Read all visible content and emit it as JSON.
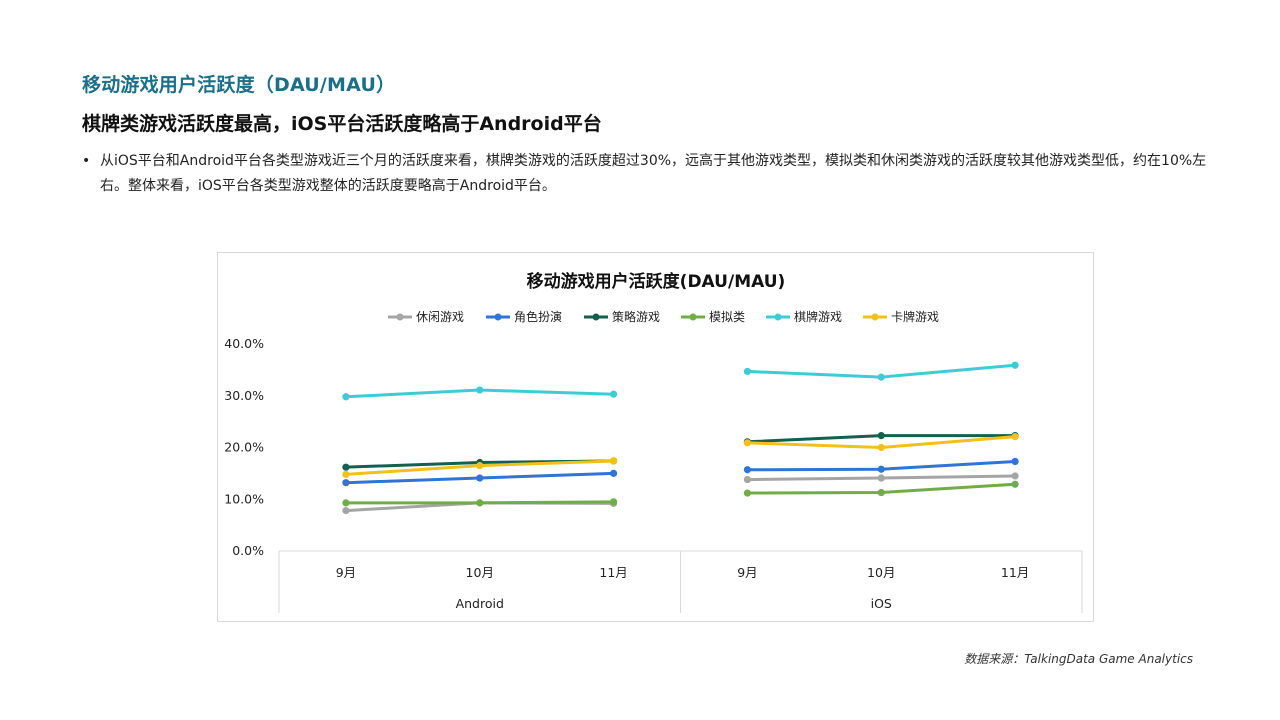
{
  "heading": "移动游戏用户活跃度（DAU/MAU）",
  "subheading": "棋牌类游戏活跃度最高，iOS平台活跃度略高于Android平台",
  "bullet": {
    "symbol": "•",
    "text": "从iOS平台和Android平台各类型游戏近三个月的活跃度来看，棋牌类游戏的活跃度超过30%，远高于其他游戏类型，模拟类和休闲类游戏的活跃度较其他游戏类型低，约在10%左右。整体来看，iOS平台各类型游戏整体的活跃度要略高于Android平台。"
  },
  "source": "数据来源：TalkingData  Game Analytics",
  "chart_data": {
    "type": "line",
    "title": "移动游戏用户活跃度(DAU/MAU)",
    "legend_position": "top",
    "grid": false,
    "ylim": [
      0,
      40
    ],
    "y_ticks": [
      "0.0%",
      "10.0%",
      "20.0%",
      "30.0%",
      "40.0%"
    ],
    "groups": [
      {
        "name": "Android",
        "categories": [
          "9月",
          "10月",
          "11月"
        ]
      },
      {
        "name": "iOS",
        "categories": [
          "9月",
          "10月",
          "11月"
        ]
      }
    ],
    "series": [
      {
        "name": "休闲游戏",
        "color": "#a5a5a5",
        "android": [
          7.8,
          9.3,
          9.2
        ],
        "ios": [
          13.8,
          14.1,
          14.5
        ]
      },
      {
        "name": "角色扮演",
        "color": "#2e75d6",
        "android": [
          13.2,
          14.1,
          15.0
        ],
        "ios": [
          15.7,
          15.8,
          17.3
        ]
      },
      {
        "name": "策略游戏",
        "color": "#12604e",
        "android": [
          16.2,
          17.1,
          17.4
        ],
        "ios": [
          21.1,
          22.3,
          22.3
        ]
      },
      {
        "name": "模拟类",
        "color": "#70ad47",
        "android": [
          9.3,
          9.3,
          9.5
        ],
        "ios": [
          11.2,
          11.3,
          12.9
        ]
      },
      {
        "name": "棋牌游戏",
        "color": "#3fcbd6",
        "android": [
          29.8,
          31.1,
          30.3
        ],
        "ios": [
          34.7,
          33.6,
          35.9
        ]
      },
      {
        "name": "卡牌游戏",
        "color": "#f2c01a",
        "android": [
          14.8,
          16.5,
          17.4
        ],
        "ios": [
          20.9,
          20.0,
          22.1
        ]
      }
    ]
  }
}
